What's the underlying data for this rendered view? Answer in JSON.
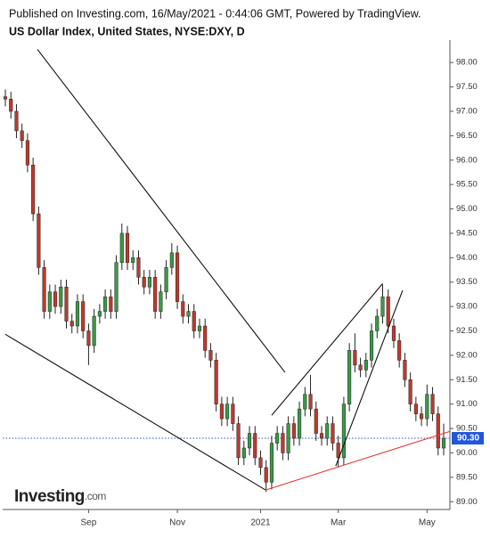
{
  "chart_data": {
    "type": "candlestick",
    "subtitle": "Published on Investing.com, 16/May/2021 - 0:44:06 GMT, Powered by TradingView.",
    "title": "US Dollar Index, United States, NYSE:DXY, D",
    "categories": [
      null,
      null,
      null,
      null,
      null,
      null,
      null,
      null,
      null,
      null,
      null,
      null,
      null,
      null,
      null,
      "Sep",
      null,
      null,
      null,
      null,
      null,
      null,
      null,
      null,
      null,
      null,
      null,
      null,
      null,
      null,
      null,
      "Nov",
      null,
      null,
      null,
      null,
      null,
      null,
      null,
      null,
      null,
      null,
      null,
      null,
      null,
      null,
      "2021",
      null,
      null,
      null,
      null,
      null,
      null,
      null,
      null,
      null,
      null,
      null,
      null,
      null,
      "Mar",
      null,
      null,
      null,
      null,
      null,
      null,
      null,
      null,
      null,
      null,
      null,
      null,
      null,
      null,
      null,
      "May",
      null,
      null,
      null
    ],
    "open": [
      97.3,
      97.25,
      97.0,
      96.6,
      96.4,
      95.9,
      94.9,
      93.8,
      92.9,
      93.3,
      93.0,
      93.4,
      92.7,
      92.6,
      93.1,
      92.5,
      92.2,
      92.8,
      92.9,
      93.2,
      92.9,
      93.9,
      94.5,
      93.9,
      94.0,
      93.6,
      93.4,
      93.6,
      92.9,
      93.3,
      93.8,
      94.1,
      93.1,
      92.8,
      92.9,
      92.5,
      92.6,
      92.1,
      91.9,
      91.0,
      90.7,
      91.0,
      90.6,
      89.9,
      90.1,
      90.4,
      89.9,
      89.7,
      89.4,
      90.2,
      90.4,
      90.0,
      90.6,
      90.3,
      90.9,
      91.2,
      90.9,
      90.4,
      90.3,
      90.6,
      90.2,
      89.9,
      91.0,
      92.1,
      91.8,
      91.7,
      91.9,
      92.5,
      92.8,
      93.2,
      92.6,
      92.3,
      91.9,
      91.5,
      91.0,
      90.8,
      90.7,
      91.2,
      90.8,
      90.1
    ],
    "high": [
      97.45,
      97.4,
      97.15,
      96.75,
      96.55,
      96.05,
      95.05,
      93.95,
      93.45,
      93.45,
      93.55,
      93.55,
      92.85,
      93.25,
      93.25,
      92.65,
      92.95,
      93.05,
      93.35,
      93.35,
      94.05,
      94.7,
      94.65,
      94.15,
      94.15,
      93.75,
      93.75,
      93.75,
      93.45,
      93.95,
      94.3,
      94.25,
      93.25,
      93.05,
      93.05,
      92.75,
      92.75,
      92.25,
      92.05,
      91.15,
      91.15,
      91.15,
      90.75,
      90.25,
      90.55,
      90.55,
      90.05,
      89.85,
      90.35,
      90.55,
      90.55,
      90.75,
      90.75,
      91.05,
      91.35,
      91.6,
      91.05,
      90.55,
      90.75,
      90.75,
      90.35,
      91.15,
      92.25,
      92.45,
      91.95,
      92.05,
      92.65,
      92.95,
      93.45,
      93.35,
      92.75,
      92.45,
      92.05,
      91.65,
      91.15,
      90.95,
      91.4,
      91.35,
      90.95,
      90.6
    ],
    "low": [
      97.1,
      96.85,
      96.45,
      96.25,
      95.75,
      94.75,
      93.65,
      92.75,
      92.75,
      92.85,
      92.85,
      92.55,
      92.45,
      92.45,
      92.35,
      91.8,
      92.05,
      92.65,
      92.75,
      92.75,
      92.75,
      93.75,
      93.75,
      93.75,
      93.45,
      93.25,
      93.25,
      92.75,
      92.75,
      93.15,
      93.65,
      92.95,
      92.65,
      92.65,
      92.35,
      92.35,
      91.95,
      91.75,
      90.85,
      90.55,
      90.55,
      90.45,
      89.75,
      89.75,
      89.95,
      89.75,
      89.55,
      89.2,
      89.25,
      90.05,
      89.85,
      89.85,
      90.15,
      90.15,
      90.75,
      90.75,
      90.25,
      90.15,
      90.15,
      90.05,
      89.7,
      89.75,
      90.85,
      91.65,
      91.55,
      91.55,
      91.75,
      92.35,
      92.65,
      92.45,
      92.15,
      91.75,
      91.35,
      90.85,
      90.65,
      90.55,
      90.55,
      90.65,
      89.95,
      89.95
    ],
    "close": [
      97.25,
      97.0,
      96.6,
      96.4,
      95.9,
      94.9,
      93.8,
      92.9,
      93.3,
      93.0,
      93.4,
      92.7,
      92.6,
      93.1,
      92.5,
      92.2,
      92.8,
      92.9,
      93.2,
      92.9,
      93.9,
      94.5,
      93.9,
      94.0,
      93.6,
      93.4,
      93.6,
      92.9,
      93.3,
      93.8,
      94.1,
      93.1,
      92.8,
      92.9,
      92.5,
      92.6,
      92.1,
      91.9,
      91.0,
      90.7,
      91.0,
      90.6,
      89.9,
      90.1,
      90.4,
      89.9,
      89.7,
      89.4,
      90.2,
      90.4,
      90.0,
      90.6,
      90.3,
      90.9,
      91.2,
      90.9,
      90.4,
      90.3,
      90.6,
      90.2,
      89.9,
      91.0,
      92.1,
      91.8,
      91.7,
      91.9,
      92.5,
      92.8,
      93.2,
      92.6,
      92.3,
      91.9,
      91.5,
      91.0,
      90.8,
      90.7,
      91.2,
      90.8,
      90.1,
      90.3
    ],
    "up_color": "#3a9a45",
    "down_color": "#c0392b",
    "ylim": [
      88.84,
      98.46
    ],
    "yticks": [
      {
        "value": 89,
        "label": "89.00"
      },
      {
        "value": 89.5,
        "label": "89.50"
      },
      {
        "value": 90,
        "label": "90.00"
      },
      {
        "value": 90.5,
        "label": "90.50"
      },
      {
        "value": 91,
        "label": "91.00"
      },
      {
        "value": 91.5,
        "label": "91.50"
      },
      {
        "value": 92,
        "label": "92.00"
      },
      {
        "value": 92.5,
        "label": "92.50"
      },
      {
        "value": 93,
        "label": "93.00"
      },
      {
        "value": 93.5,
        "label": "93.50"
      },
      {
        "value": 94,
        "label": "94.00"
      },
      {
        "value": 94.5,
        "label": "94.50"
      },
      {
        "value": 95,
        "label": "95.00"
      },
      {
        "value": 95.5,
        "label": "95.50"
      },
      {
        "value": 96,
        "label": "96.00"
      },
      {
        "value": 96.5,
        "label": "96.50"
      },
      {
        "value": 97,
        "label": "97.00"
      },
      {
        "value": 97.5,
        "label": "97.50"
      },
      {
        "value": 98,
        "label": "98.00"
      }
    ],
    "trendlines": [
      {
        "color": "#111111",
        "x": [
          5.78,
          50.4
        ],
        "y": [
          98.27,
          91.65
        ]
      },
      {
        "color": "#111111",
        "x": [
          0,
          46.9
        ],
        "y": [
          92.43,
          89.24
        ]
      },
      {
        "color": "#e53935",
        "x": [
          46.9,
          80.1
        ],
        "y": [
          89.24,
          90.44
        ]
      },
      {
        "color": "#111111",
        "x": [
          48.0,
          68.0
        ],
        "y": [
          90.77,
          93.47
        ]
      },
      {
        "color": "#111111",
        "x": [
          59.55,
          71.6
        ],
        "y": [
          89.73,
          93.33
        ]
      }
    ],
    "last_price": {
      "value": 90.3,
      "label": "90.30",
      "color": "#2157d6"
    }
  },
  "logo": {
    "name": "Investing",
    "suffix": ".com"
  }
}
